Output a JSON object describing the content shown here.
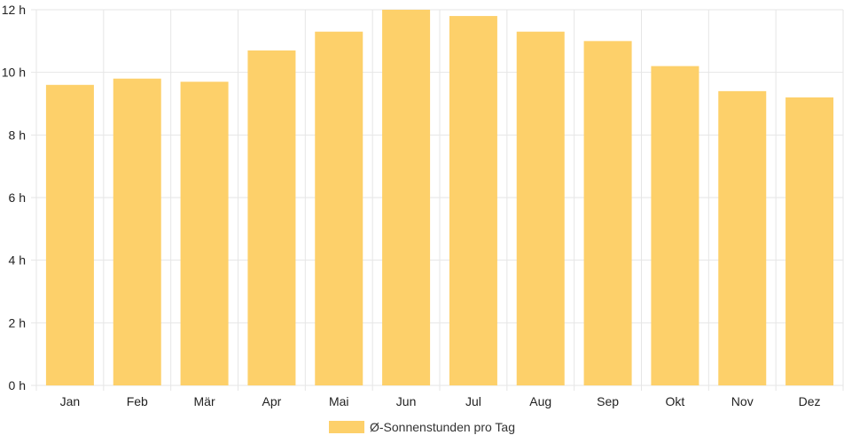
{
  "chart_data": {
    "type": "bar",
    "categories": [
      "Jan",
      "Feb",
      "Mär",
      "Apr",
      "Mai",
      "Jun",
      "Jul",
      "Aug",
      "Sep",
      "Okt",
      "Nov",
      "Dez"
    ],
    "series": [
      {
        "name": "Ø-Sonnenstunden pro Tag",
        "values": [
          9.6,
          9.8,
          9.7,
          10.7,
          11.3,
          12.0,
          11.8,
          11.3,
          11.0,
          10.2,
          9.4,
          9.2
        ]
      }
    ],
    "yticks": [
      "0 h",
      "2 h",
      "4 h",
      "6 h",
      "8 h",
      "10 h",
      "12 h"
    ],
    "ylim": [
      0,
      12
    ],
    "grid": true,
    "legend_position": "bottom",
    "bar_color": "#fdd06a",
    "grid_color": "#e6e6e6"
  }
}
